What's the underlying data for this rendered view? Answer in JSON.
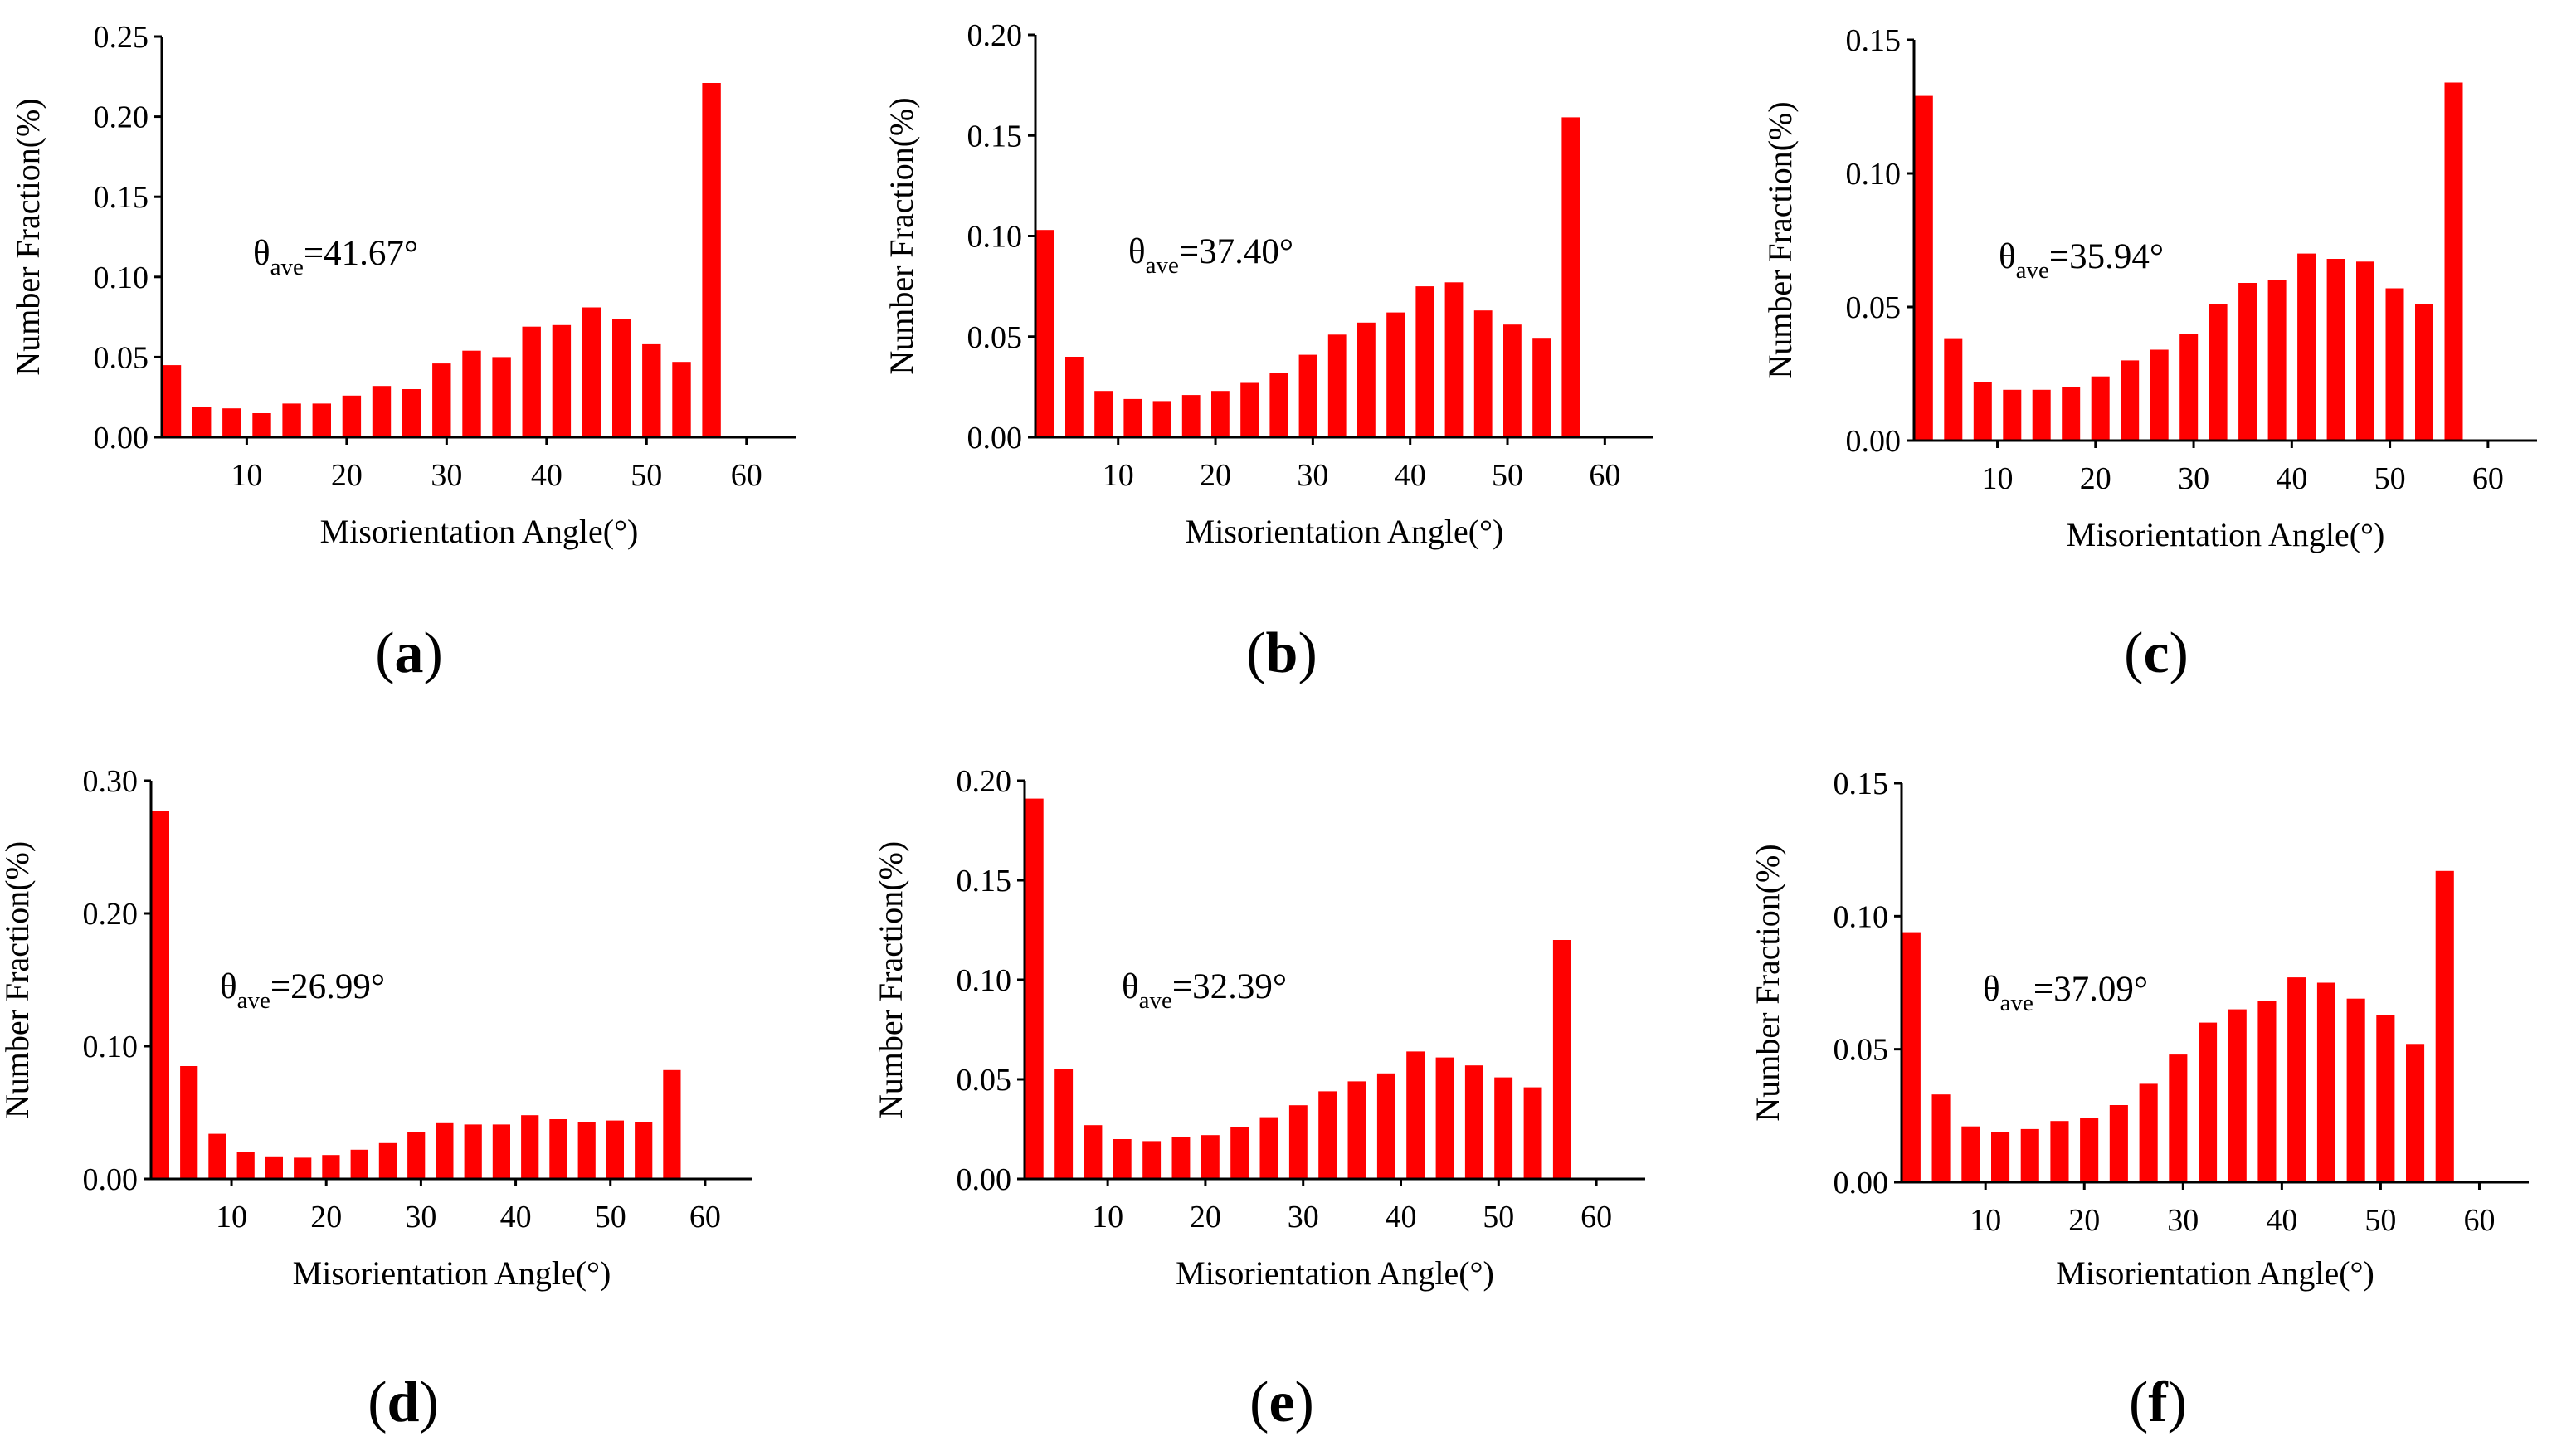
{
  "colors": {
    "bar": "#ff0000",
    "axis": "#000000"
  },
  "chart_data": [
    {
      "panel": "a",
      "type": "bar",
      "xlabel": "Misorientation Angle(°)",
      "ylabel": "Number Fraction(%)",
      "annotation": {
        "symbol": "θ",
        "subscript": "ave",
        "value": "=41.67°"
      },
      "xticks": [
        "10",
        "20",
        "30",
        "40",
        "50",
        "60"
      ],
      "yticks": [
        "0.00",
        "0.05",
        "0.10",
        "0.15",
        "0.20",
        "0.25"
      ],
      "ylim": [
        0,
        0.25
      ],
      "xlim": [
        1.5,
        65
      ],
      "x": [
        2.5,
        5.5,
        8.5,
        11.5,
        14.5,
        17.5,
        20.5,
        23.5,
        26.5,
        29.5,
        32.5,
        35.5,
        38.5,
        41.5,
        44.5,
        47.5,
        50.5,
        53.5,
        56.5,
        59.5
      ],
      "values": [
        0.045,
        0.019,
        0.018,
        0.015,
        0.021,
        0.021,
        0.026,
        0.032,
        0.03,
        0.046,
        0.054,
        0.05,
        0.069,
        0.07,
        0.081,
        0.074,
        0.058,
        0.047,
        0.221,
        0.0
      ]
    },
    {
      "panel": "b",
      "type": "bar",
      "xlabel": "Misorientation Angle(°)",
      "ylabel": "Number Fraction(%)",
      "annotation": {
        "symbol": "θ",
        "subscript": "ave",
        "value": "=37.40°"
      },
      "xticks": [
        "10",
        "20",
        "30",
        "40",
        "50",
        "60"
      ],
      "yticks": [
        "0.00",
        "0.05",
        "0.10",
        "0.15",
        "0.20"
      ],
      "ylim": [
        0,
        0.2
      ],
      "xlim": [
        1.5,
        65
      ],
      "x": [
        2.5,
        5.5,
        8.5,
        11.5,
        14.5,
        17.5,
        20.5,
        23.5,
        26.5,
        29.5,
        32.5,
        35.5,
        38.5,
        41.5,
        44.5,
        47.5,
        50.5,
        53.5,
        56.5,
        59.5
      ],
      "values": [
        0.103,
        0.04,
        0.023,
        0.019,
        0.018,
        0.021,
        0.023,
        0.027,
        0.032,
        0.041,
        0.051,
        0.057,
        0.062,
        0.075,
        0.077,
        0.063,
        0.056,
        0.049,
        0.159,
        0.0
      ]
    },
    {
      "panel": "c",
      "type": "bar",
      "xlabel": "Misorientation Angle(°)",
      "ylabel": "Number Fraction(%)",
      "annotation": {
        "symbol": "θ",
        "subscript": "ave",
        "value": "=35.94°"
      },
      "xticks": [
        "10",
        "20",
        "30",
        "40",
        "50",
        "60"
      ],
      "yticks": [
        "0.00",
        "0.05",
        "0.10",
        "0.15"
      ],
      "ylim": [
        0,
        0.15
      ],
      "xlim": [
        1.5,
        65
      ],
      "x": [
        2.5,
        5.5,
        8.5,
        11.5,
        14.5,
        17.5,
        20.5,
        23.5,
        26.5,
        29.5,
        32.5,
        35.5,
        38.5,
        41.5,
        44.5,
        47.5,
        50.5,
        53.5,
        56.5,
        59.5
      ],
      "values": [
        0.129,
        0.038,
        0.022,
        0.019,
        0.019,
        0.02,
        0.024,
        0.03,
        0.034,
        0.04,
        0.051,
        0.059,
        0.06,
        0.07,
        0.068,
        0.067,
        0.057,
        0.051,
        0.134,
        0.0
      ]
    },
    {
      "panel": "d",
      "type": "bar",
      "xlabel": "Misorientation Angle(°)",
      "ylabel": "Number Fraction(%)",
      "annotation": {
        "symbol": "θ",
        "subscript": "ave",
        "value": "=26.99°"
      },
      "xticks": [
        "10",
        "20",
        "30",
        "40",
        "50",
        "60"
      ],
      "yticks": [
        "0.00",
        "0.10",
        "0.20",
        "0.30"
      ],
      "ylim": [
        0,
        0.3
      ],
      "xlim": [
        1.5,
        65
      ],
      "x": [
        2.5,
        5.5,
        8.5,
        11.5,
        14.5,
        17.5,
        20.5,
        23.5,
        26.5,
        29.5,
        32.5,
        35.5,
        38.5,
        41.5,
        44.5,
        47.5,
        50.5,
        53.5,
        56.5,
        59.5
      ],
      "values": [
        0.277,
        0.085,
        0.034,
        0.02,
        0.017,
        0.016,
        0.018,
        0.022,
        0.027,
        0.035,
        0.042,
        0.041,
        0.041,
        0.048,
        0.045,
        0.043,
        0.044,
        0.043,
        0.082,
        0.0
      ]
    },
    {
      "panel": "e",
      "type": "bar",
      "xlabel": "Misorientation Angle(°)",
      "ylabel": "Number Fraction(%)",
      "annotation": {
        "symbol": "θ",
        "subscript": "ave",
        "value": "=32.39°"
      },
      "xticks": [
        "10",
        "20",
        "30",
        "40",
        "50",
        "60"
      ],
      "yticks": [
        "0.00",
        "0.05",
        "0.10",
        "0.15",
        "0.20"
      ],
      "ylim": [
        0,
        0.2
      ],
      "xlim": [
        1.5,
        65
      ],
      "x": [
        2.5,
        5.5,
        8.5,
        11.5,
        14.5,
        17.5,
        20.5,
        23.5,
        26.5,
        29.5,
        32.5,
        35.5,
        38.5,
        41.5,
        44.5,
        47.5,
        50.5,
        53.5,
        56.5,
        59.5
      ],
      "values": [
        0.191,
        0.055,
        0.027,
        0.02,
        0.019,
        0.021,
        0.022,
        0.026,
        0.031,
        0.037,
        0.044,
        0.049,
        0.053,
        0.064,
        0.061,
        0.057,
        0.051,
        0.046,
        0.12,
        0.0
      ]
    },
    {
      "panel": "f",
      "type": "bar",
      "xlabel": "Misorientation Angle(°)",
      "ylabel": "Number Fraction(%)",
      "annotation": {
        "symbol": "θ",
        "subscript": "ave",
        "value": "=37.09°"
      },
      "xticks": [
        "10",
        "20",
        "30",
        "40",
        "50",
        "60"
      ],
      "yticks": [
        "0.00",
        "0.05",
        "0.10",
        "0.15"
      ],
      "ylim": [
        0,
        0.15
      ],
      "xlim": [
        1.5,
        65
      ],
      "x": [
        2.5,
        5.5,
        8.5,
        11.5,
        14.5,
        17.5,
        20.5,
        23.5,
        26.5,
        29.5,
        32.5,
        35.5,
        38.5,
        41.5,
        44.5,
        47.5,
        50.5,
        53.5,
        56.5,
        59.5
      ],
      "values": [
        0.094,
        0.033,
        0.021,
        0.019,
        0.02,
        0.023,
        0.024,
        0.029,
        0.037,
        0.048,
        0.06,
        0.065,
        0.068,
        0.077,
        0.075,
        0.069,
        0.063,
        0.052,
        0.117,
        0.0
      ]
    }
  ],
  "panel_labels": [
    "(a)",
    "(b)",
    "(c)",
    "(d)",
    "(e)",
    "(f)"
  ]
}
